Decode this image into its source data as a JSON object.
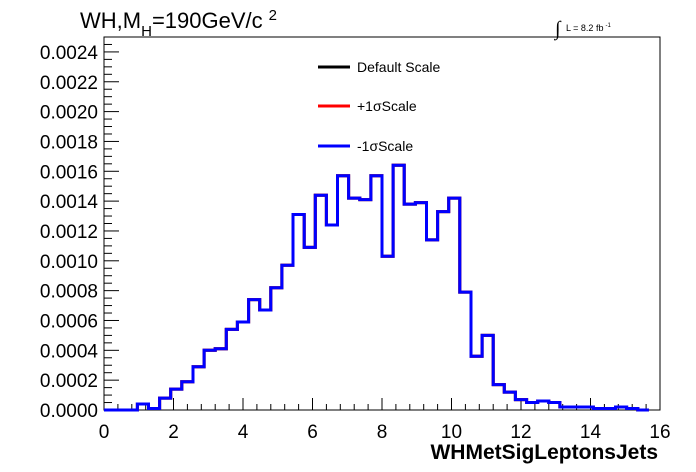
{
  "chart_data": {
    "type": "line",
    "title": "WH,M",
    "title_sub": "H",
    "title_suffix": "=190GeV/c",
    "title_sup": "2",
    "lumi_label": "L = 8.2 fb",
    "lumi_sup": "-1",
    "lumi_integral": "∫",
    "xlabel": "WHMetSigLeptonsJets",
    "ylabel": "",
    "xlim": [
      0,
      16
    ],
    "ylim": [
      0,
      0.0025
    ],
    "x_ticks": [
      "0",
      "2",
      "4",
      "6",
      "8",
      "10",
      "12",
      "14",
      "16"
    ],
    "y_ticks": [
      "0.0000",
      "0.0002",
      "0.0004",
      "0.0006",
      "0.0008",
      "0.0010",
      "0.0012",
      "0.0014",
      "0.0016",
      "0.0018",
      "0.0020",
      "0.0022",
      "0.0024"
    ],
    "bin_width": 0.32,
    "bin_edges_start": 0,
    "series": [
      {
        "name": "Default Scale",
        "color": "#000000"
      },
      {
        "name": "+1σScale",
        "color": "#ff0000"
      },
      {
        "name": "-1σScale",
        "color": "#0000ff"
      }
    ],
    "values": [
      0.0,
      0.0,
      0.0,
      4e-05,
      1e-05,
      8e-05,
      0.00014,
      0.00019,
      0.00029,
      0.0004,
      0.00041,
      0.00054,
      0.00059,
      0.00074,
      0.00067,
      0.00082,
      0.00097,
      0.00131,
      0.00109,
      0.00144,
      0.00124,
      0.00157,
      0.00142,
      0.00141,
      0.00157,
      0.00103,
      0.00164,
      0.00138,
      0.00139,
      0.00114,
      0.00133,
      0.00142,
      0.00079,
      0.00036,
      0.0005,
      0.00017,
      0.00012,
      7e-05,
      5e-05,
      6e-05,
      5e-05,
      2e-05,
      2e-05,
      2e-05,
      1e-05,
      1e-05,
      2e-05,
      1e-05,
      0.0
    ],
    "grid": false,
    "legend_position": "top-center"
  }
}
